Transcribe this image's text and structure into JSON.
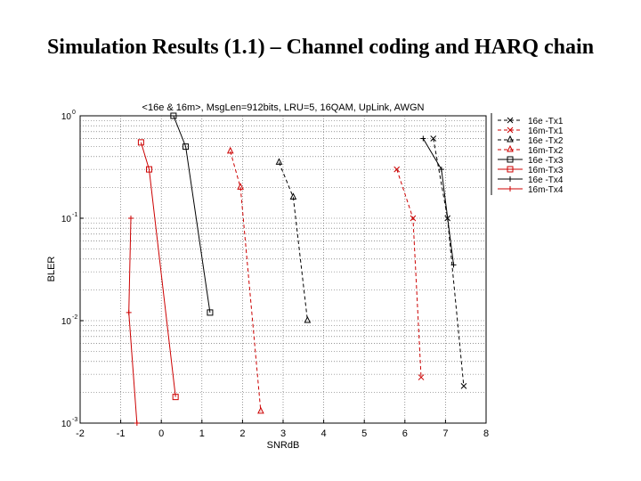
{
  "slide": {
    "title": "Simulation Results (1.1) – Channel coding and HARQ chain"
  },
  "chart_data": {
    "type": "line",
    "title": "<16e & 16m>, MsgLen=912bits, LRU=5, 16QAM, UpLink, AWGN",
    "xlabel": "SNRdB",
    "ylabel": "BLER",
    "xlim": [
      -2,
      8
    ],
    "ylim": [
      0.001,
      1
    ],
    "yscale": "log",
    "xticks": [
      "-2",
      "-1",
      "0",
      "1",
      "2",
      "3",
      "4",
      "5",
      "6",
      "7",
      "8"
    ],
    "yticks": [
      {
        "base": "10",
        "exp": "0",
        "value": 1
      },
      {
        "base": "10",
        "exp": "-1",
        "value": 0.1
      },
      {
        "base": "10",
        "exp": "-2",
        "value": 0.01
      },
      {
        "base": "10",
        "exp": "-3",
        "value": 0.001
      }
    ],
    "grid": true,
    "legend_position": "top-right",
    "series": [
      {
        "name": "16e -Tx1",
        "color": "#000000",
        "dash": "4 3",
        "marker": "x",
        "points": [
          [
            6.7,
            0.6
          ],
          [
            7.05,
            0.1
          ],
          [
            7.45,
            0.0023
          ]
        ]
      },
      {
        "name": "16m-Tx1",
        "color": "#cc0000",
        "dash": "4 3",
        "marker": "x",
        "points": [
          [
            5.8,
            0.3
          ],
          [
            6.2,
            0.1
          ],
          [
            6.4,
            0.0028
          ]
        ]
      },
      {
        "name": "16e -Tx2",
        "color": "#000000",
        "dash": "4 3",
        "marker": "triangle",
        "points": [
          [
            2.9,
            0.35
          ],
          [
            3.25,
            0.16
          ],
          [
            3.6,
            0.01
          ]
        ]
      },
      {
        "name": "16m-Tx2",
        "color": "#cc0000",
        "dash": "4 3",
        "marker": "triangle",
        "points": [
          [
            1.7,
            0.45
          ],
          [
            1.95,
            0.2
          ],
          [
            2.45,
            0.0013
          ]
        ]
      },
      {
        "name": "16e -Tx3",
        "color": "#000000",
        "dash": "",
        "marker": "square",
        "points": [
          [
            0.3,
            1.0
          ],
          [
            0.6,
            0.5
          ],
          [
            1.2,
            0.012
          ]
        ]
      },
      {
        "name": "16m-Tx3",
        "color": "#cc0000",
        "dash": "",
        "marker": "square",
        "points": [
          [
            -0.5,
            0.55
          ],
          [
            -0.3,
            0.3
          ],
          [
            0.35,
            0.0018
          ]
        ]
      },
      {
        "name": "16e -Tx4",
        "color": "#000000",
        "dash": "",
        "marker": "plus",
        "points": [
          [
            6.45,
            0.6
          ],
          [
            6.9,
            0.3
          ],
          [
            7.2,
            0.035
          ]
        ]
      },
      {
        "name": "16m-Tx4",
        "color": "#cc0000",
        "dash": "",
        "marker": "plus",
        "points": [
          [
            -0.75,
            0.1
          ],
          [
            -0.8,
            0.012
          ],
          [
            -0.6,
            0.001
          ]
        ]
      }
    ]
  }
}
